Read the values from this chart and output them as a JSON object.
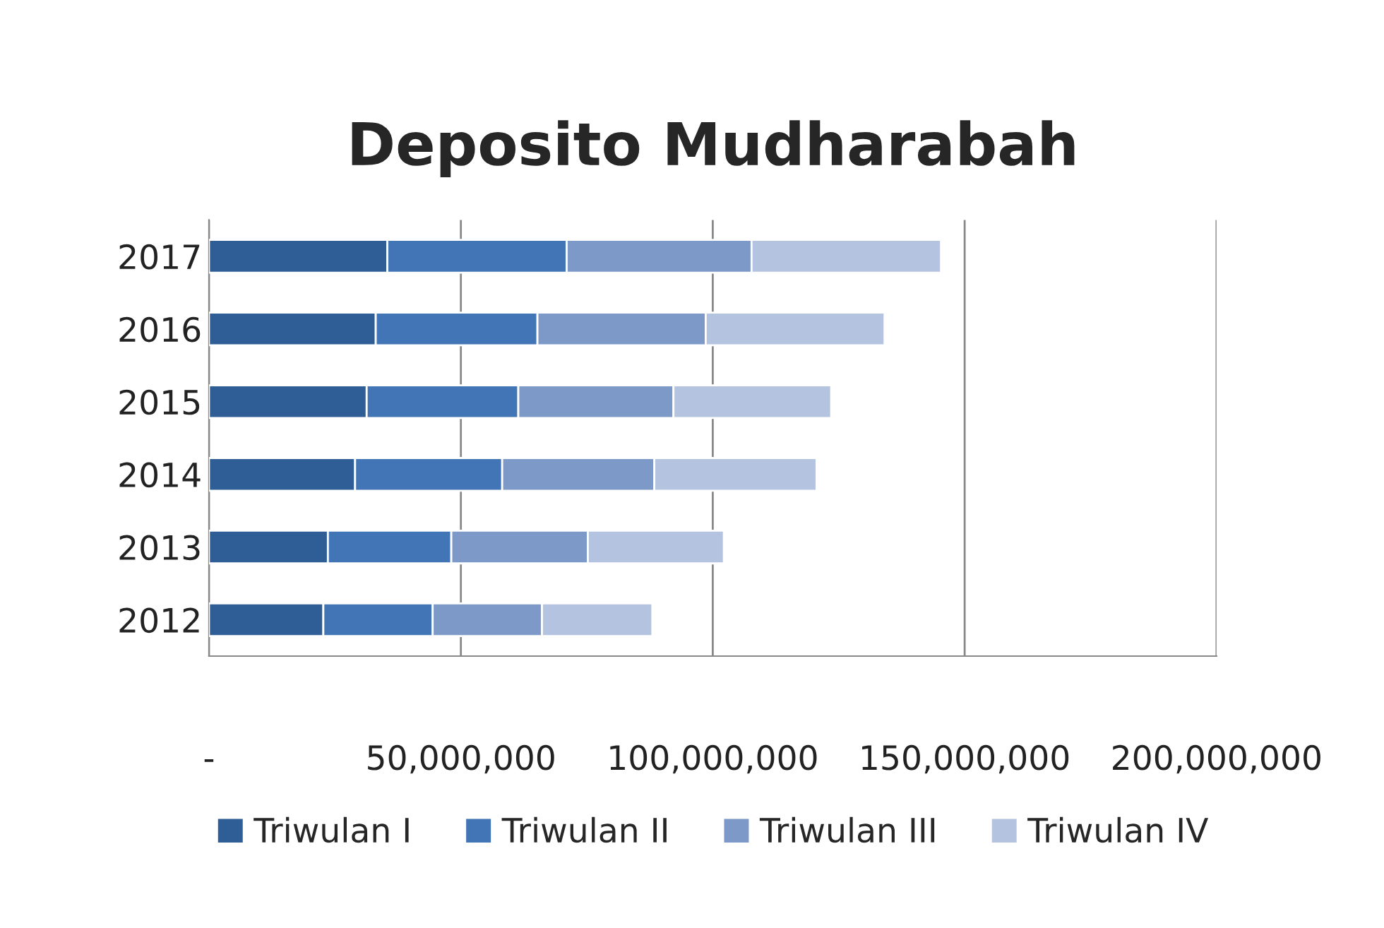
{
  "chart_data": {
    "type": "bar",
    "orientation": "horizontal",
    "stacked": true,
    "title": "Deposito Mudharabah",
    "categories": [
      "2017",
      "2016",
      "2015",
      "2014",
      "2013",
      "2012"
    ],
    "series": [
      {
        "name": "Triwulan I",
        "color": "#2f5e97",
        "values": [
          35400000,
          33100000,
          31300000,
          29000000,
          23600000,
          22700000
        ]
      },
      {
        "name": "Triwulan II",
        "color": "#4275b5",
        "values": [
          35600000,
          32100000,
          30100000,
          29200000,
          24500000,
          21700000
        ]
      },
      {
        "name": "Triwulan III",
        "color": "#7d99c8",
        "values": [
          36700000,
          33400000,
          30800000,
          30200000,
          27100000,
          21700000
        ]
      },
      {
        "name": "Triwulan IV",
        "color": "#b4c3df",
        "values": [
          37600000,
          35500000,
          31300000,
          32200000,
          27000000,
          21900000
        ]
      }
    ],
    "xlim": [
      0,
      200000000
    ],
    "xticks": [
      {
        "value": 0,
        "label": "-"
      },
      {
        "value": 50000000,
        "label": "50,000,000"
      },
      {
        "value": 100000000,
        "label": "100,000,000"
      },
      {
        "value": 150000000,
        "label": "150,000,000"
      },
      {
        "value": 200000000,
        "label": "200,000,000"
      }
    ],
    "grid": "x",
    "legend": "bottom"
  }
}
